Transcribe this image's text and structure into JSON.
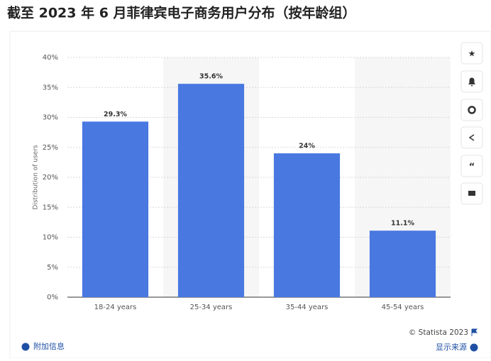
{
  "chart_data": {
    "type": "bar",
    "title": "截至 2023 年 6 月菲律宾电子商务用户分布（按年龄组）",
    "y_label": "Distribution of users",
    "categories": [
      "18-24 years",
      "25-34 years",
      "35-44 years",
      "45-54 years"
    ],
    "values": [
      29.3,
      35.6,
      24,
      11.1
    ],
    "value_labels": [
      "29.3%",
      "35.6%",
      "24%",
      "11.1%"
    ],
    "color": "#4878e0",
    "ylim": [
      0,
      40
    ],
    "yticks": [
      {
        "value": 0,
        "label": "0%"
      },
      {
        "value": 5,
        "label": "5%"
      },
      {
        "value": 10,
        "label": "10%"
      },
      {
        "value": 15,
        "label": "15%"
      },
      {
        "value": 20,
        "label": "20%"
      },
      {
        "value": 25,
        "label": "25%"
      },
      {
        "value": 30,
        "label": "30%"
      },
      {
        "value": 35,
        "label": "35%"
      },
      {
        "value": 40,
        "label": "40%"
      }
    ],
    "grid": true,
    "source": "© Statista 2023",
    "more_info": "附加信息",
    "show_source": "显示来源"
  }
}
